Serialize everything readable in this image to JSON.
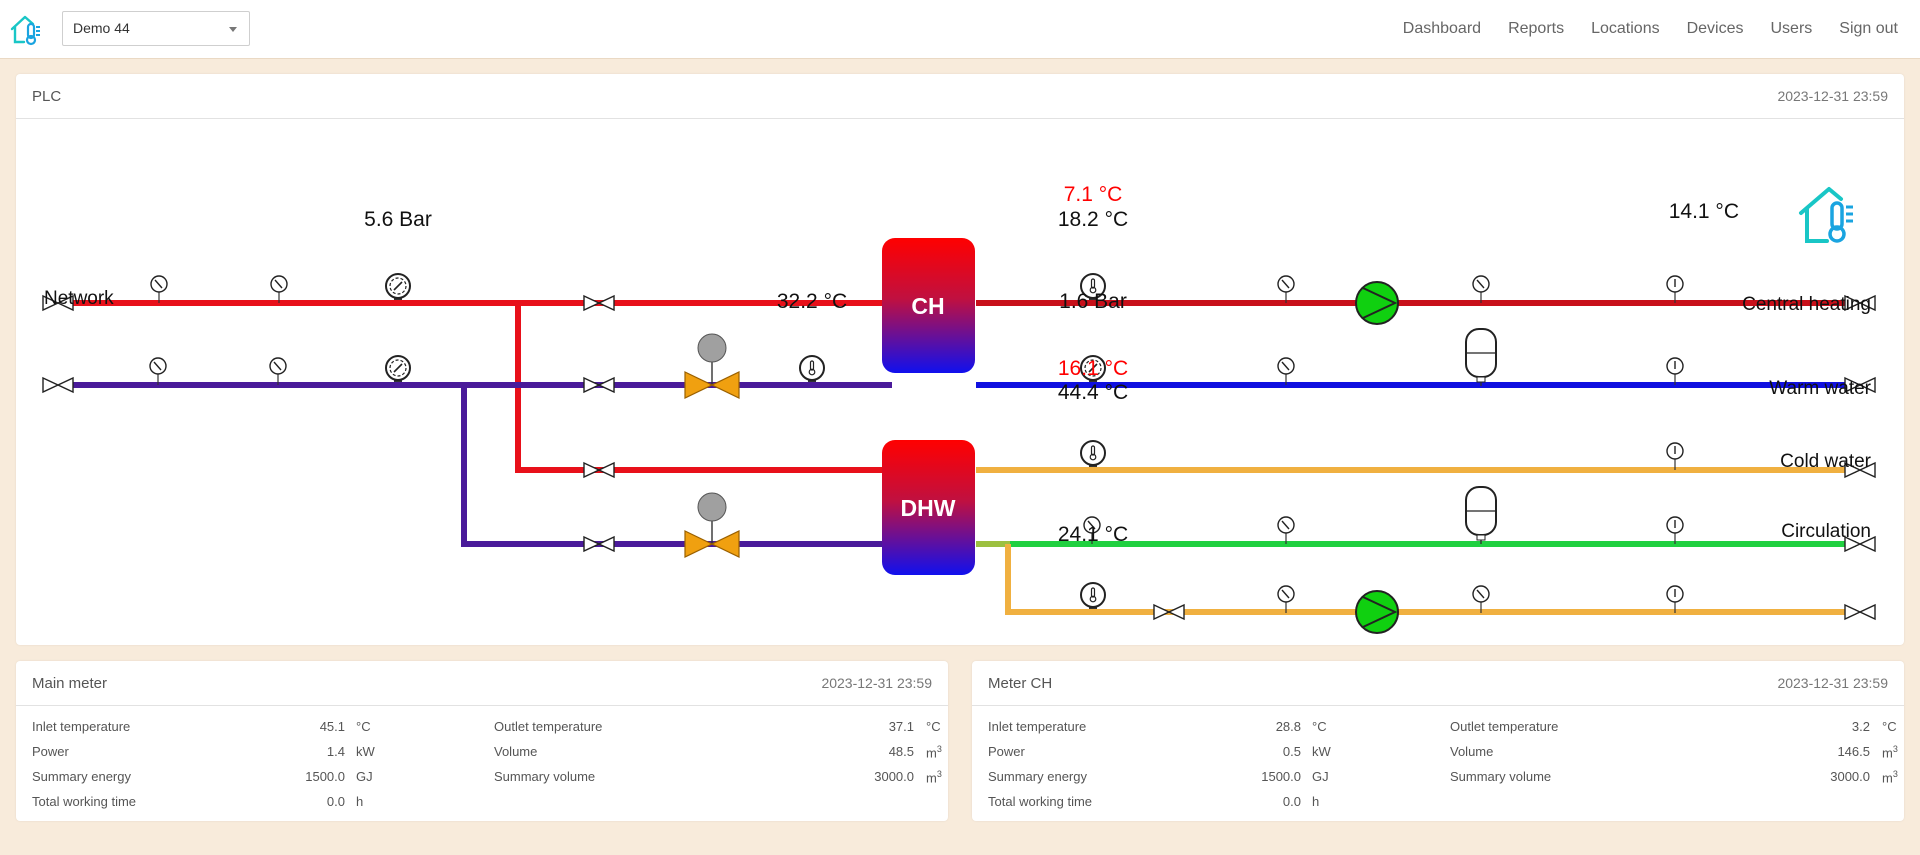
{
  "header": {
    "location_select": "Demo 44",
    "nav": [
      "Dashboard",
      "Reports",
      "Locations",
      "Devices",
      "Users",
      "Sign out"
    ]
  },
  "plc": {
    "title": "PLC",
    "timestamp": "2023-12-31 23:59",
    "labels": {
      "network": "Network",
      "central_heating": "Central heating",
      "warm_water": "Warm water",
      "cold_water": "Cold water",
      "circulation": "Circulation",
      "ch": "CH",
      "dhw": "DHW"
    },
    "readings": {
      "network_pressure": "5.6 Bar",
      "ch_supply_setpoint": "7.1 °C",
      "ch_supply_temp": "18.2 °C",
      "outdoor_temp": "14.1 °C",
      "primary_return_temp": "32.2 °C",
      "ch_pressure": "1.6 Bar",
      "dhw_setpoint": "16.1 °C",
      "dhw_temp": "44.4 °C",
      "circulation_temp": "24.1 °C"
    },
    "colors": {
      "supply": "#e8101a",
      "return": "#4a1a9a",
      "ch_supply": "#c8101a",
      "ch_return": "#1010e0",
      "warm_water": "#f0b040",
      "cold_water": "#20d040",
      "pump": "#10d010",
      "valve": "#f0a010"
    }
  },
  "meters": [
    {
      "title": "Main meter",
      "timestamp": "2023-12-31 23:59",
      "rows": [
        {
          "label": "Inlet temperature",
          "value": "45.1",
          "unit": "°C"
        },
        {
          "label": "Power",
          "value": "1.4",
          "unit": "kW"
        },
        {
          "label": "Summary energy",
          "value": "1500.0",
          "unit": "GJ"
        },
        {
          "label": "Total working time",
          "value": "0.0",
          "unit": "h"
        },
        {
          "label": "Outlet temperature",
          "value": "37.1",
          "unit": "°C"
        },
        {
          "label": "Volume",
          "value": "48.5",
          "unit": "m",
          "unit_sup": "3"
        },
        {
          "label": "Summary volume",
          "value": "3000.0",
          "unit": "m",
          "unit_sup": "3"
        }
      ]
    },
    {
      "title": "Meter CH",
      "timestamp": "2023-12-31 23:59",
      "rows": [
        {
          "label": "Inlet temperature",
          "value": "28.8",
          "unit": "°C"
        },
        {
          "label": "Power",
          "value": "0.5",
          "unit": "kW"
        },
        {
          "label": "Summary energy",
          "value": "1500.0",
          "unit": "GJ"
        },
        {
          "label": "Total working time",
          "value": "0.0",
          "unit": "h"
        },
        {
          "label": "Outlet temperature",
          "value": "3.2",
          "unit": "°C"
        },
        {
          "label": "Volume",
          "value": "146.5",
          "unit": "m",
          "unit_sup": "3"
        },
        {
          "label": "Summary volume",
          "value": "3000.0",
          "unit": "m",
          "unit_sup": "3"
        }
      ]
    }
  ]
}
